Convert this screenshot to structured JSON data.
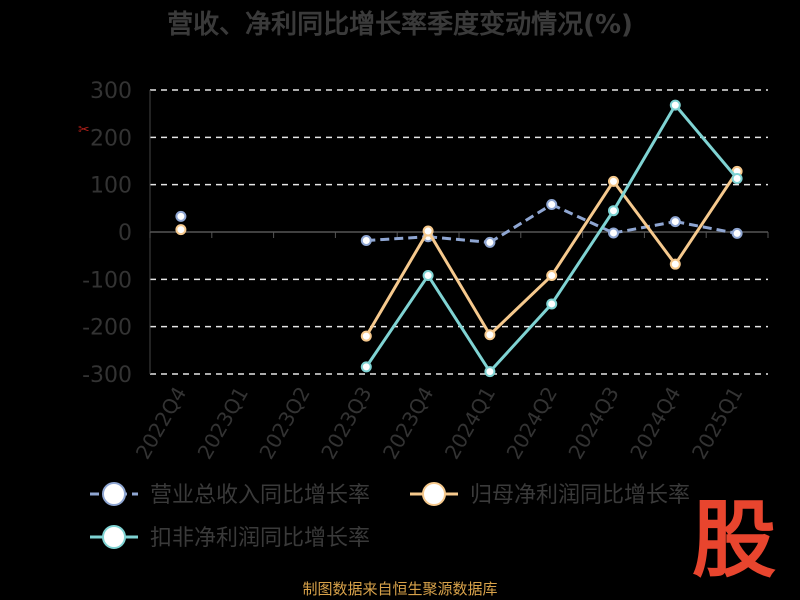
{
  "chart_data": {
    "type": "line",
    "title": "营收、净利同比增长率季度变动情况(%)",
    "categories": [
      "2022Q4",
      "2023Q1",
      "2023Q2",
      "2023Q3",
      "2023Q4",
      "2024Q1",
      "2024Q2",
      "2024Q3",
      "2024Q4",
      "2025Q1"
    ],
    "ylim": [
      -300,
      300
    ],
    "yticks": [
      300,
      200,
      100,
      0,
      -100,
      -200,
      -300
    ],
    "grid": true,
    "legend_position": "bottom",
    "series": [
      {
        "name": "营业总收入同比增长率",
        "color": "#8fa6d2",
        "dashed": true,
        "values": [
          33,
          null,
          null,
          -18,
          -10,
          -22,
          58,
          -2,
          22,
          -3
        ]
      },
      {
        "name": "归母净利润同比增长率",
        "color": "#f6c98d",
        "dashed": false,
        "values": [
          5,
          null,
          null,
          -220,
          2,
          -217,
          -92,
          107,
          -68,
          128
        ]
      },
      {
        "name": "扣非净利润同比增长率",
        "color": "#7fd3d3",
        "dashed": false,
        "values": [
          null,
          null,
          null,
          -285,
          -92,
          -295,
          -152,
          45,
          268,
          113
        ]
      }
    ]
  },
  "footer": {
    "source": "制图数据来自恒生聚源数据库"
  },
  "logo": {
    "text": "股"
  }
}
